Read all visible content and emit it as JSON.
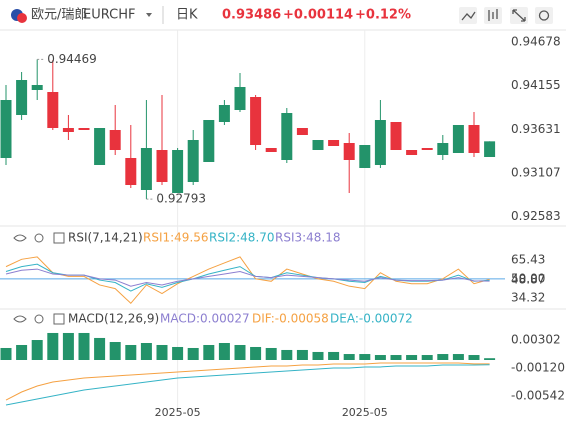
{
  "header": {
    "symbol_name": "欧元/瑞郎",
    "symbol": "EURCHF",
    "period": "日K",
    "price": "0.93486",
    "change": "+0.00114",
    "change_pct": "+0.12%"
  },
  "chart_data": [
    {
      "type": "candlestick",
      "up_color": "#23936a",
      "down_color": "#e8333d",
      "ylim": [
        0.92482,
        0.94822
      ],
      "yticks": [
        0.92583,
        0.93107,
        0.93631,
        0.94155,
        0.94678
      ],
      "high_label_index": 2,
      "low_label_index": 9,
      "candles": [
        {
          "open": 0.93286,
          "high": 0.94162,
          "low": 0.93202,
          "close": 0.93982
        },
        {
          "open": 0.93802,
          "high": 0.94318,
          "low": 0.93742,
          "close": 0.94222
        },
        {
          "open": 0.94102,
          "high": 0.94469,
          "low": 0.93982,
          "close": 0.94162
        },
        {
          "open": 0.94078,
          "high": 0.94462,
          "low": 0.93622,
          "close": 0.93646
        },
        {
          "open": 0.93646,
          "high": 0.93802,
          "low": 0.93502,
          "close": 0.93598
        },
        {
          "open": 0.93646,
          "high": 0.93646,
          "low": 0.93622,
          "close": 0.93622
        },
        {
          "open": 0.93202,
          "high": 0.93646,
          "low": 0.93202,
          "close": 0.93646
        },
        {
          "open": 0.93622,
          "high": 0.93922,
          "low": 0.93322,
          "close": 0.93382
        },
        {
          "open": 0.93286,
          "high": 0.93682,
          "low": 0.92926,
          "close": 0.92962
        },
        {
          "open": 0.92902,
          "high": 0.93982,
          "low": 0.92793,
          "close": 0.93406
        },
        {
          "open": 0.93382,
          "high": 0.94042,
          "low": 0.92962,
          "close": 0.92998
        },
        {
          "open": 0.92866,
          "high": 0.93406,
          "low": 0.92866,
          "close": 0.93382
        },
        {
          "open": 0.92998,
          "high": 0.93622,
          "low": 0.92962,
          "close": 0.93502
        },
        {
          "open": 0.93238,
          "high": 0.93742,
          "low": 0.93238,
          "close": 0.93742
        },
        {
          "open": 0.93718,
          "high": 0.93982,
          "low": 0.93682,
          "close": 0.93922
        },
        {
          "open": 0.93862,
          "high": 0.94306,
          "low": 0.93838,
          "close": 0.94138
        },
        {
          "open": 0.94018,
          "high": 0.94042,
          "low": 0.93382,
          "close": 0.93442
        },
        {
          "open": 0.93406,
          "high": 0.93406,
          "low": 0.93358,
          "close": 0.93358
        },
        {
          "open": 0.93262,
          "high": 0.93886,
          "low": 0.93226,
          "close": 0.93826
        },
        {
          "open": 0.93646,
          "high": 0.93646,
          "low": 0.93562,
          "close": 0.93562
        },
        {
          "open": 0.93382,
          "high": 0.93502,
          "low": 0.93382,
          "close": 0.93502
        },
        {
          "open": 0.93502,
          "high": 0.93502,
          "low": 0.9343,
          "close": 0.9343
        },
        {
          "open": 0.93466,
          "high": 0.93586,
          "low": 0.92866,
          "close": 0.93262
        },
        {
          "open": 0.93166,
          "high": 0.93442,
          "low": 0.93166,
          "close": 0.93442
        },
        {
          "open": 0.93202,
          "high": 0.93982,
          "low": 0.93166,
          "close": 0.93742
        },
        {
          "open": 0.93718,
          "high": 0.93718,
          "low": 0.93382,
          "close": 0.93382
        },
        {
          "open": 0.93382,
          "high": 0.93382,
          "low": 0.93322,
          "close": 0.93322
        },
        {
          "open": 0.93406,
          "high": 0.93406,
          "low": 0.93382,
          "close": 0.93382
        },
        {
          "open": 0.93322,
          "high": 0.93562,
          "low": 0.93262,
          "close": 0.93466
        },
        {
          "open": 0.93346,
          "high": 0.93682,
          "low": 0.93346,
          "close": 0.93682
        },
        {
          "open": 0.93682,
          "high": 0.93838,
          "low": 0.93298,
          "close": 0.93346
        },
        {
          "open": 0.93298,
          "high": 0.93486,
          "low": 0.93298,
          "close": 0.93486
        }
      ]
    },
    {
      "type": "line",
      "title": "RSI(7,14,21)",
      "ylim": [
        28.59,
        77.71
      ],
      "yticks": [
        34.32,
        48.87,
        {
          "value": 50,
          "label": "50.00"
        },
        65.43
      ],
      "reference_tick": 2,
      "reference_color": "#5aa9e6",
      "series": [
        {
          "name": "RSI1:49.56",
          "color": "#f5a142",
          "values": [
            60,
            66,
            68,
            55,
            52,
            52,
            45,
            42,
            30,
            45,
            38,
            46,
            52,
            58,
            63,
            68,
            50,
            48,
            58,
            54,
            50,
            48,
            44,
            42,
            55,
            48,
            46,
            46,
            50,
            58,
            46,
            49.56
          ]
        },
        {
          "name": "RSI2:48.70",
          "color": "#35b3c6",
          "values": [
            56,
            60,
            62,
            55,
            53,
            53,
            49,
            47,
            40,
            46,
            43,
            47,
            50,
            54,
            57,
            60,
            52,
            51,
            55,
            53,
            51,
            50,
            48,
            47,
            52,
            49,
            48,
            48,
            49,
            53,
            48,
            48.7
          ]
        },
        {
          "name": "RSI3:48.18",
          "color": "#8c7fd0",
          "values": [
            54,
            57,
            58,
            54,
            53,
            53,
            50,
            49,
            44,
            47,
            45,
            48,
            50,
            52,
            54,
            56,
            52,
            51,
            53,
            52,
            51,
            50,
            49,
            48,
            51,
            49,
            48.5,
            48.5,
            49,
            51,
            48.3,
            48.18
          ]
        }
      ]
    },
    {
      "type": "macd",
      "title": "MACD(12,26,9)",
      "ylim": [
        -0.00723,
        0.00482
      ],
      "yticks": [
        0.00302,
        {
          "value": -0.0012,
          "label": "-0.00120"
        },
        -0.00542
      ],
      "categories": [
        null,
        null,
        null,
        null,
        null,
        null,
        null,
        null,
        null,
        null,
        null,
        "2025-05",
        null,
        null,
        null,
        null,
        null,
        null,
        null,
        null,
        null,
        null,
        null,
        "2025-05",
        null,
        null,
        null,
        null,
        null,
        null,
        null,
        null
      ],
      "histogram": {
        "name": "MACD:0.00027",
        "color": "#23936a",
        "label_color": "#8c7fd0",
        "values": [
          0.00181,
          0.00226,
          0.00301,
          0.00407,
          0.00407,
          0.00407,
          0.00332,
          0.00271,
          0.00226,
          0.00256,
          0.00226,
          0.00196,
          0.00181,
          0.00226,
          0.00256,
          0.00226,
          0.00196,
          0.00181,
          0.00151,
          0.00151,
          0.00121,
          0.00121,
          0.0009,
          0.0009,
          0.00075,
          0.00075,
          0.00075,
          0.00075,
          0.0009,
          0.0009,
          0.00075,
          0.00027
        ]
      },
      "series": [
        {
          "name": "DIF:-0.00058",
          "color": "#f5a142",
          "values": [
            -0.00603,
            -0.00482,
            -0.00392,
            -0.00332,
            -0.00301,
            -0.00271,
            -0.00256,
            -0.00241,
            -0.00226,
            -0.00211,
            -0.00196,
            -0.00181,
            -0.00166,
            -0.00151,
            -0.00136,
            -0.00121,
            -0.00105,
            -0.0009,
            -0.0009,
            -0.00075,
            -0.00075,
            -0.0006,
            -0.0006,
            -0.0006,
            -0.00045,
            -0.00045,
            -0.00045,
            -0.00045,
            -0.00045,
            -0.00045,
            -0.00058,
            -0.00058
          ]
        },
        {
          "name": "DEA:-0.00072",
          "color": "#35b3c6",
          "values": [
            -0.00678,
            -0.00633,
            -0.00588,
            -0.00543,
            -0.00497,
            -0.00452,
            -0.00422,
            -0.00392,
            -0.00362,
            -0.00332,
            -0.00301,
            -0.00271,
            -0.00256,
            -0.00241,
            -0.00226,
            -0.00211,
            -0.00196,
            -0.00181,
            -0.00166,
            -0.00151,
            -0.00136,
            -0.00121,
            -0.00121,
            -0.00105,
            -0.00105,
            -0.0009,
            -0.0009,
            -0.0009,
            -0.00075,
            -0.00075,
            -0.00075,
            -0.00072
          ]
        }
      ]
    }
  ]
}
